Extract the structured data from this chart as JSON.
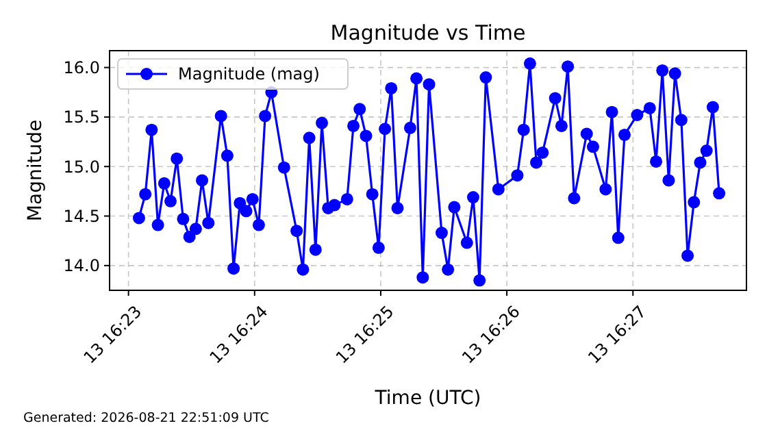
{
  "chart_data": {
    "type": "line",
    "title": "Magnitude vs Time",
    "xlabel": "Time (UTC)",
    "ylabel": "Magnitude",
    "annotations": [
      "Generated: 2026-08-21 22:51:09 UTC"
    ],
    "x": [
      "2026-08-13T16:23:05",
      "2026-08-13T16:23:08",
      "2026-08-13T16:23:11",
      "2026-08-13T16:23:14",
      "2026-08-13T16:23:17",
      "2026-08-13T16:23:20",
      "2026-08-13T16:23:23",
      "2026-08-13T16:23:26",
      "2026-08-13T16:23:29",
      "2026-08-13T16:23:32",
      "2026-08-13T16:23:35",
      "2026-08-13T16:23:38",
      "2026-08-13T16:23:44",
      "2026-08-13T16:23:47",
      "2026-08-13T16:23:50",
      "2026-08-13T16:23:53",
      "2026-08-13T16:23:56",
      "2026-08-13T16:23:59",
      "2026-08-13T16:24:02",
      "2026-08-13T16:24:05",
      "2026-08-13T16:24:08",
      "2026-08-13T16:24:14",
      "2026-08-13T16:24:20",
      "2026-08-13T16:24:23",
      "2026-08-13T16:24:26",
      "2026-08-13T16:24:29",
      "2026-08-13T16:24:32",
      "2026-08-13T16:24:35",
      "2026-08-13T16:24:38",
      "2026-08-13T16:24:44",
      "2026-08-13T16:24:47",
      "2026-08-13T16:24:50",
      "2026-08-13T16:24:53",
      "2026-08-13T16:24:56",
      "2026-08-13T16:24:59",
      "2026-08-13T16:25:02",
      "2026-08-13T16:25:05",
      "2026-08-13T16:25:08",
      "2026-08-13T16:25:14",
      "2026-08-13T16:25:17",
      "2026-08-13T16:25:20",
      "2026-08-13T16:25:23",
      "2026-08-13T16:25:29",
      "2026-08-13T16:25:32",
      "2026-08-13T16:25:35",
      "2026-08-13T16:25:41",
      "2026-08-13T16:25:44",
      "2026-08-13T16:25:47",
      "2026-08-13T16:25:50",
      "2026-08-13T16:25:56",
      "2026-08-13T16:26:05",
      "2026-08-13T16:26:08",
      "2026-08-13T16:26:11",
      "2026-08-13T16:26:14",
      "2026-08-13T16:26:17",
      "2026-08-13T16:26:23",
      "2026-08-13T16:26:26",
      "2026-08-13T16:26:29",
      "2026-08-13T16:26:32",
      "2026-08-13T16:26:38",
      "2026-08-13T16:26:41",
      "2026-08-13T16:26:47",
      "2026-08-13T16:26:50",
      "2026-08-13T16:26:53",
      "2026-08-13T16:26:56",
      "2026-08-13T16:27:02",
      "2026-08-13T16:27:08",
      "2026-08-13T16:27:11",
      "2026-08-13T16:27:14",
      "2026-08-13T16:27:17",
      "2026-08-13T16:27:20",
      "2026-08-13T16:27:23",
      "2026-08-13T16:27:26",
      "2026-08-13T16:27:29",
      "2026-08-13T16:27:32",
      "2026-08-13T16:27:35",
      "2026-08-13T16:27:38",
      "2026-08-13T16:27:41"
    ],
    "series": [
      {
        "name": "Magnitude (mag)",
        "color": "#0000ff",
        "values": [
          14.48,
          14.72,
          15.37,
          14.41,
          14.83,
          14.65,
          15.08,
          14.47,
          14.29,
          14.37,
          14.86,
          14.43,
          15.51,
          15.11,
          13.97,
          14.63,
          14.55,
          14.67,
          14.41,
          15.51,
          15.75,
          14.99,
          14.35,
          13.96,
          15.29,
          14.16,
          15.44,
          14.58,
          14.61,
          14.67,
          15.41,
          15.58,
          15.31,
          14.72,
          14.18,
          15.38,
          15.79,
          14.58,
          15.39,
          15.89,
          13.88,
          15.83,
          14.33,
          13.96,
          14.59,
          14.23,
          14.69,
          13.85,
          15.9,
          14.77,
          14.91,
          15.37,
          16.04,
          15.04,
          15.14,
          15.69,
          15.41,
          16.01,
          14.68,
          15.33,
          15.2,
          14.77,
          15.55,
          14.28,
          15.32,
          15.52,
          15.59,
          15.05,
          15.97,
          14.86,
          15.94,
          15.47,
          14.1,
          14.64,
          15.04,
          15.16,
          15.6,
          14.73
        ]
      }
    ],
    "xlim": [
      "2026-08-13T16:22:51",
      "2026-08-13T16:27:54"
    ],
    "xticks": [
      {
        "value": "2026-08-13T16:23",
        "label": "13 16:23"
      },
      {
        "value": "2026-08-13T16:24",
        "label": "13 16:24"
      },
      {
        "value": "2026-08-13T16:25",
        "label": "13 16:25"
      },
      {
        "value": "2026-08-13T16:26",
        "label": "13 16:26"
      },
      {
        "value": "2026-08-13T16:27",
        "label": "13 16:27"
      }
    ],
    "ylim": [
      13.75,
      16.17
    ],
    "yticks": [
      {
        "value": 14,
        "label": "14.0"
      },
      {
        "value": 14.5,
        "label": "14.5"
      },
      {
        "value": 15,
        "label": "15.0"
      },
      {
        "value": 15.5,
        "label": "15.5"
      },
      {
        "value": 16,
        "label": "16.0"
      }
    ],
    "grid": true,
    "legend": "top left",
    "marker": "circle",
    "line_style": "solid"
  }
}
